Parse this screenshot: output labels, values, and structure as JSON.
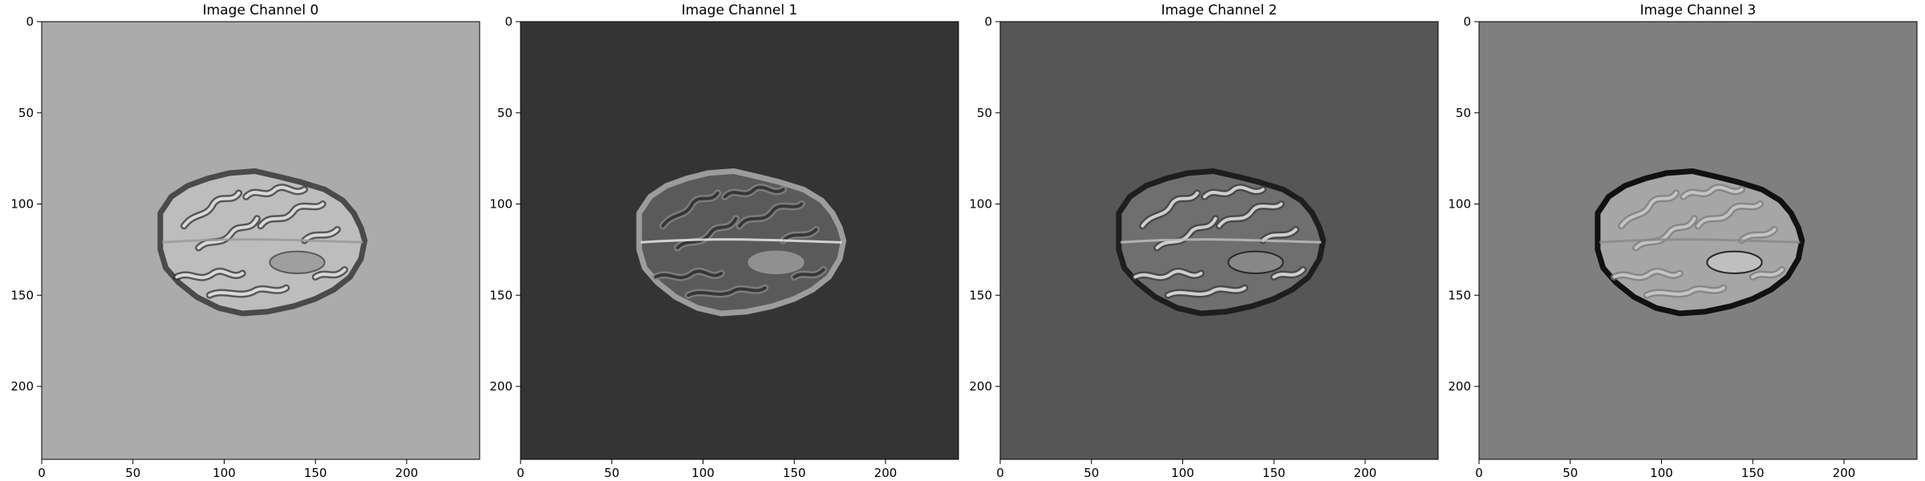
{
  "figure": {
    "panels": [
      {
        "title": "Image Channel 0",
        "background": "#ababab",
        "brain_fill": "#bdbdbd",
        "brain_edge": "#4a4a4a",
        "fold_stroke": "#f0f0f0",
        "fold_dark": "#2e2e2e",
        "lesion": "#9a9a9a",
        "midline": "#9a9a9a"
      },
      {
        "title": "Image Channel 1",
        "background": "#343434",
        "brain_fill": "#5a5a5a",
        "brain_edge": "#9c9c9c",
        "fold_stroke": "#2a2a2a",
        "fold_dark": "#8a8a8a",
        "lesion": "#9a9a9a",
        "midline": "#e8e8e8"
      },
      {
        "title": "Image Channel 2",
        "background": "#565656",
        "brain_fill": "#6f6f6f",
        "brain_edge": "#1e1e1e",
        "fold_stroke": "#e6e6e6",
        "fold_dark": "#3a3a3a",
        "lesion": "#8c8c8c",
        "midline": "#bdbdbd"
      },
      {
        "title": "Image Channel 3",
        "background": "#7f7f7f",
        "brain_fill": "#a6a6a6",
        "brain_edge": "#111111",
        "fold_stroke": "#cfcfcf",
        "fold_dark": "#7a7a7a",
        "lesion": "#c4c4c4",
        "midline": "#8a8a8a"
      }
    ],
    "x_ticks": [
      0,
      50,
      100,
      150,
      200
    ],
    "y_ticks": [
      0,
      50,
      100,
      150,
      200
    ],
    "image_extent": [
      0,
      240
    ]
  }
}
